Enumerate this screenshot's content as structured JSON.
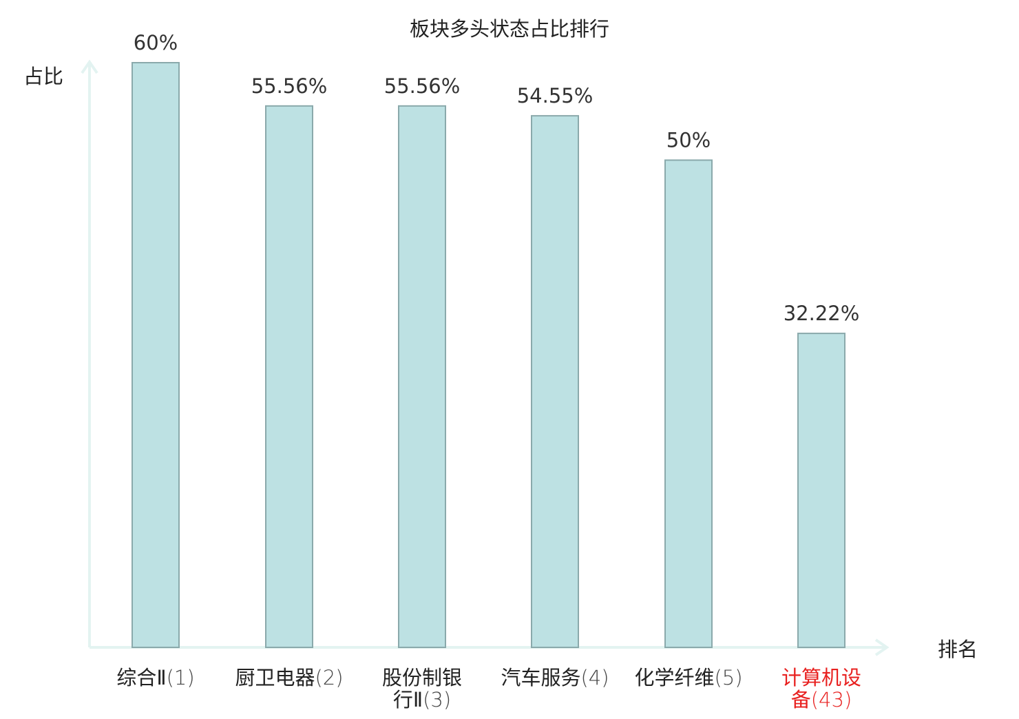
{
  "chart_data": {
    "type": "bar",
    "title": "板块多头状态占比排行",
    "ylabel": "占比",
    "xlabel": "排名",
    "categories": [
      {
        "name_lines": [
          "综合Ⅱ"
        ],
        "rank": "(1)",
        "highlight": false
      },
      {
        "name_lines": [
          "厨卫电器"
        ],
        "rank": "(2)",
        "highlight": false
      },
      {
        "name_lines": [
          "股份制银",
          "行Ⅱ"
        ],
        "rank": "(3)",
        "highlight": false
      },
      {
        "name_lines": [
          "汽车服务"
        ],
        "rank": "(4)",
        "highlight": false
      },
      {
        "name_lines": [
          "化学纤维"
        ],
        "rank": "(5)",
        "highlight": false
      },
      {
        "name_lines": [
          "计算机设",
          "备"
        ],
        "rank": "(43)",
        "highlight": true
      }
    ],
    "values": [
      60,
      55.56,
      55.56,
      54.55,
      50,
      32.22
    ],
    "value_labels": [
      "60%",
      "55.56%",
      "55.56%",
      "54.55%",
      "50%",
      "32.22%"
    ],
    "ylim": [
      0,
      60
    ],
    "grid": false,
    "legend": "none",
    "colors": {
      "bar_fill": "#bde1e3",
      "bar_stroke": "#8aa9ab",
      "axis": "#e3f3f1",
      "text": "#333333",
      "label_dark": "#222222",
      "highlight": "#e8201f"
    }
  }
}
